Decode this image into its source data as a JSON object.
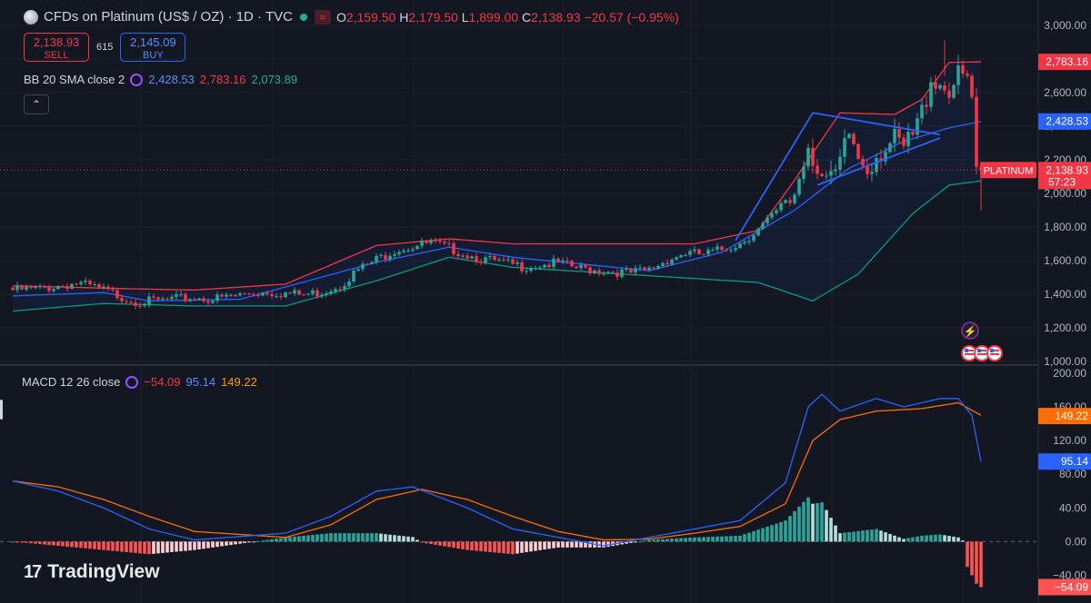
{
  "header": {
    "title": "CFDs on Platinum (US$ / OZ) · 1D · TVC",
    "open_label": "O",
    "open": "2,159.50",
    "high_label": "H",
    "high": "2,179.50",
    "low_label": "L",
    "low": "1,899.00",
    "close_label": "C",
    "close": "2,138.93",
    "change": "−20.57 (−0.95%)"
  },
  "trade": {
    "sell_price": "2,138.93",
    "sell_label": "SELL",
    "spread": "615",
    "buy_price": "2,145.09",
    "buy_label": "BUY"
  },
  "bb_legend": {
    "name": "BB 20 SMA close 2",
    "basis": "2,428.53",
    "upper": "2,783.16",
    "lower": "2,073.89"
  },
  "macd_legend": {
    "name": "MACD 12 26 close",
    "hist": "−54.09",
    "macd": "95.14",
    "signal": "149.22"
  },
  "collapse_icon": "chevron-up",
  "watermark": "TradingView",
  "colors": {
    "bg": "#131722",
    "up": "#26a69a",
    "down": "#f23645",
    "bb_upper": "#f23645",
    "bb_basis": "#2962ff",
    "bb_lower": "#089981",
    "macd": "#2962ff",
    "signal": "#ff6d00",
    "hist_up_strong": "#26a69a",
    "hist_up_weak": "#b2dfdb",
    "hist_down_strong": "#ff5252",
    "hist_down_weak": "#ffcdd2"
  },
  "chart_data": [
    {
      "type": "candlestick",
      "ylim": [
        1000,
        3000
      ],
      "y_ticks": [
        "1,000.00",
        "1,200.00",
        "1,400.00",
        "1,600.00",
        "1,800.00",
        "2,000.00",
        "2,200.00",
        "2,400.00",
        "2,600.00",
        "2,800.00",
        "3,000.00"
      ],
      "x_labels_visible": false,
      "last_price_label": "PLATINUM",
      "last_price": "2,138.93",
      "countdown": "57:23",
      "price_tags": {
        "upper": "2,783.16",
        "basis": "2,428.53",
        "lower": "2,073.89"
      },
      "anchors": [
        [
          0,
          1440
        ],
        [
          6,
          1445
        ],
        [
          10,
          1465
        ],
        [
          14,
          1480
        ],
        [
          18,
          1455
        ],
        [
          22,
          1420
        ],
        [
          26,
          1380
        ],
        [
          28,
          1370
        ],
        [
          32,
          1375
        ],
        [
          36,
          1385
        ],
        [
          40,
          1395
        ],
        [
          44,
          1385
        ],
        [
          48,
          1400
        ],
        [
          52,
          1420
        ],
        [
          56,
          1430
        ],
        [
          60,
          1420
        ],
        [
          64,
          1410
        ],
        [
          68,
          1430
        ],
        [
          72,
          1470
        ],
        [
          76,
          1560
        ],
        [
          80,
          1620
        ],
        [
          84,
          1680
        ],
        [
          88,
          1700
        ],
        [
          92,
          1720
        ],
        [
          96,
          1690
        ],
        [
          100,
          1650
        ],
        [
          104,
          1620
        ],
        [
          108,
          1600
        ],
        [
          112,
          1580
        ],
        [
          116,
          1590
        ],
        [
          120,
          1600
        ],
        [
          124,
          1570
        ],
        [
          128,
          1560
        ],
        [
          132,
          1550
        ],
        [
          136,
          1540
        ],
        [
          140,
          1560
        ],
        [
          144,
          1620
        ],
        [
          148,
          1660
        ],
        [
          152,
          1650
        ],
        [
          156,
          1680
        ],
        [
          160,
          1720
        ],
        [
          164,
          1800
        ],
        [
          168,
          1900
        ],
        [
          172,
          2050
        ],
        [
          175,
          2350
        ],
        [
          178,
          2150
        ],
        [
          180,
          2090
        ],
        [
          182,
          2200
        ],
        [
          184,
          2400
        ],
        [
          186,
          2260
        ],
        [
          188,
          2210
        ],
        [
          190,
          2290
        ],
        [
          192,
          2330
        ],
        [
          194,
          2340
        ],
        [
          196,
          2300
        ],
        [
          198,
          2380
        ],
        [
          200,
          2520
        ],
        [
          202,
          2750
        ],
        [
          204,
          2700
        ],
        [
          206,
          2680
        ],
        [
          208,
          2720
        ],
        [
          210,
          2720
        ],
        [
          211,
          2600
        ],
        [
          212,
          2130
        ],
        [
          213,
          2139
        ]
      ],
      "bollinger": {
        "upper": [
          [
            0,
            1450
          ],
          [
            30,
            1430
          ],
          [
            40,
            1425
          ],
          [
            60,
            1460
          ],
          [
            80,
            1690
          ],
          [
            96,
            1730
          ],
          [
            110,
            1700
          ],
          [
            130,
            1700
          ],
          [
            150,
            1700
          ],
          [
            164,
            1780
          ],
          [
            172,
            2080
          ],
          [
            182,
            2480
          ],
          [
            194,
            2470
          ],
          [
            200,
            2560
          ],
          [
            206,
            2780
          ],
          [
            213,
            2783
          ]
        ],
        "basis": [
          [
            0,
            1390
          ],
          [
            20,
            1410
          ],
          [
            30,
            1360
          ],
          [
            50,
            1370
          ],
          [
            80,
            1590
          ],
          [
            96,
            1680
          ],
          [
            110,
            1620
          ],
          [
            140,
            1540
          ],
          [
            156,
            1650
          ],
          [
            172,
            1900
          ],
          [
            184,
            2150
          ],
          [
            196,
            2310
          ],
          [
            206,
            2390
          ],
          [
            213,
            2428
          ]
        ],
        "lower": [
          [
            0,
            1300
          ],
          [
            20,
            1345
          ],
          [
            40,
            1330
          ],
          [
            60,
            1330
          ],
          [
            80,
            1480
          ],
          [
            96,
            1620
          ],
          [
            110,
            1560
          ],
          [
            140,
            1510
          ],
          [
            164,
            1470
          ],
          [
            176,
            1360
          ],
          [
            186,
            1520
          ],
          [
            198,
            1880
          ],
          [
            206,
            2050
          ],
          [
            213,
            2074
          ]
        ]
      },
      "trendlines": [
        [
          [
            159,
            1720
          ],
          [
            176,
            2480
          ]
        ],
        [
          [
            176,
            2480
          ],
          [
            204,
            2350
          ]
        ],
        [
          [
            177,
            2050
          ],
          [
            204,
            2330
          ]
        ]
      ],
      "events": [
        "lightning",
        "us-flag",
        "us-flag",
        "us-flag"
      ]
    },
    {
      "type": "macd",
      "ylim": [
        -60,
        200
      ],
      "y_ticks": [
        "−40.00",
        "0.00",
        "40.00",
        "80.00",
        "120.00",
        "160.00",
        "200.00"
      ],
      "macd": [
        [
          0,
          72
        ],
        [
          10,
          60
        ],
        [
          20,
          40
        ],
        [
          30,
          15
        ],
        [
          40,
          2
        ],
        [
          60,
          10
        ],
        [
          70,
          30
        ],
        [
          80,
          60
        ],
        [
          88,
          65
        ],
        [
          100,
          40
        ],
        [
          110,
          15
        ],
        [
          120,
          5
        ],
        [
          130,
          -5
        ],
        [
          140,
          5
        ],
        [
          150,
          15
        ],
        [
          160,
          25
        ],
        [
          170,
          70
        ],
        [
          175,
          160
        ],
        [
          178,
          175
        ],
        [
          182,
          155
        ],
        [
          190,
          170
        ],
        [
          196,
          160
        ],
        [
          204,
          170
        ],
        [
          208,
          170
        ],
        [
          211,
          150
        ],
        [
          213,
          95
        ]
      ],
      "signal": [
        [
          0,
          72
        ],
        [
          10,
          65
        ],
        [
          20,
          50
        ],
        [
          30,
          30
        ],
        [
          40,
          12
        ],
        [
          60,
          5
        ],
        [
          70,
          20
        ],
        [
          80,
          50
        ],
        [
          90,
          62
        ],
        [
          100,
          50
        ],
        [
          110,
          30
        ],
        [
          120,
          12
        ],
        [
          130,
          2
        ],
        [
          140,
          3
        ],
        [
          150,
          10
        ],
        [
          160,
          18
        ],
        [
          170,
          45
        ],
        [
          176,
          120
        ],
        [
          182,
          145
        ],
        [
          190,
          155
        ],
        [
          200,
          158
        ],
        [
          208,
          165
        ],
        [
          213,
          150
        ]
      ],
      "hist_last": -54.09,
      "price_tags": {
        "signal": "149.22",
        "macd": "95.14",
        "hist": "−54.09"
      }
    }
  ]
}
